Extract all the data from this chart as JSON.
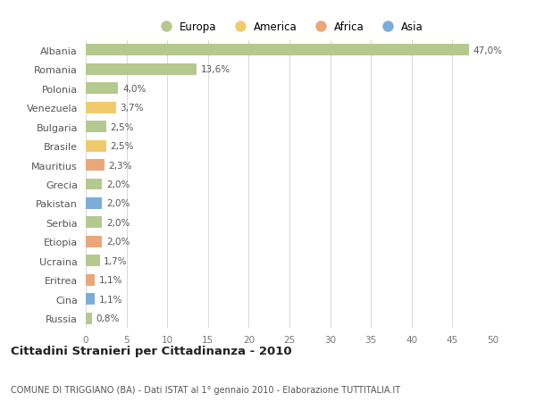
{
  "countries": [
    "Albania",
    "Romania",
    "Polonia",
    "Venezuela",
    "Bulgaria",
    "Brasile",
    "Mauritius",
    "Grecia",
    "Pakistan",
    "Serbia",
    "Etiopia",
    "Ucraina",
    "Eritrea",
    "Cina",
    "Russia"
  ],
  "values": [
    47.0,
    13.6,
    4.0,
    3.7,
    2.5,
    2.5,
    2.3,
    2.0,
    2.0,
    2.0,
    2.0,
    1.7,
    1.1,
    1.1,
    0.8
  ],
  "labels": [
    "47,0%",
    "13,6%",
    "4,0%",
    "3,7%",
    "2,5%",
    "2,5%",
    "2,3%",
    "2,0%",
    "2,0%",
    "2,0%",
    "2,0%",
    "1,7%",
    "1,1%",
    "1,1%",
    "0,8%"
  ],
  "continents": [
    "Europa",
    "Europa",
    "Europa",
    "America",
    "Europa",
    "America",
    "Africa",
    "Europa",
    "Asia",
    "Europa",
    "Africa",
    "Europa",
    "Africa",
    "Asia",
    "Europa"
  ],
  "continent_colors": {
    "Europa": "#b5c98e",
    "America": "#f0cb6e",
    "Africa": "#e8a87a",
    "Asia": "#7aaed8"
  },
  "legend_order": [
    "Europa",
    "America",
    "Africa",
    "Asia"
  ],
  "title": "Cittadini Stranieri per Cittadinanza - 2010",
  "subtitle": "COMUNE DI TRIGGIANO (BA) - Dati ISTAT al 1° gennaio 2010 - Elaborazione TUTTITALIA.IT",
  "xlim": [
    0,
    50
  ],
  "xticks": [
    0,
    5,
    10,
    15,
    20,
    25,
    30,
    35,
    40,
    45,
    50
  ],
  "background_color": "#ffffff",
  "grid_color": "#d8d8d8"
}
